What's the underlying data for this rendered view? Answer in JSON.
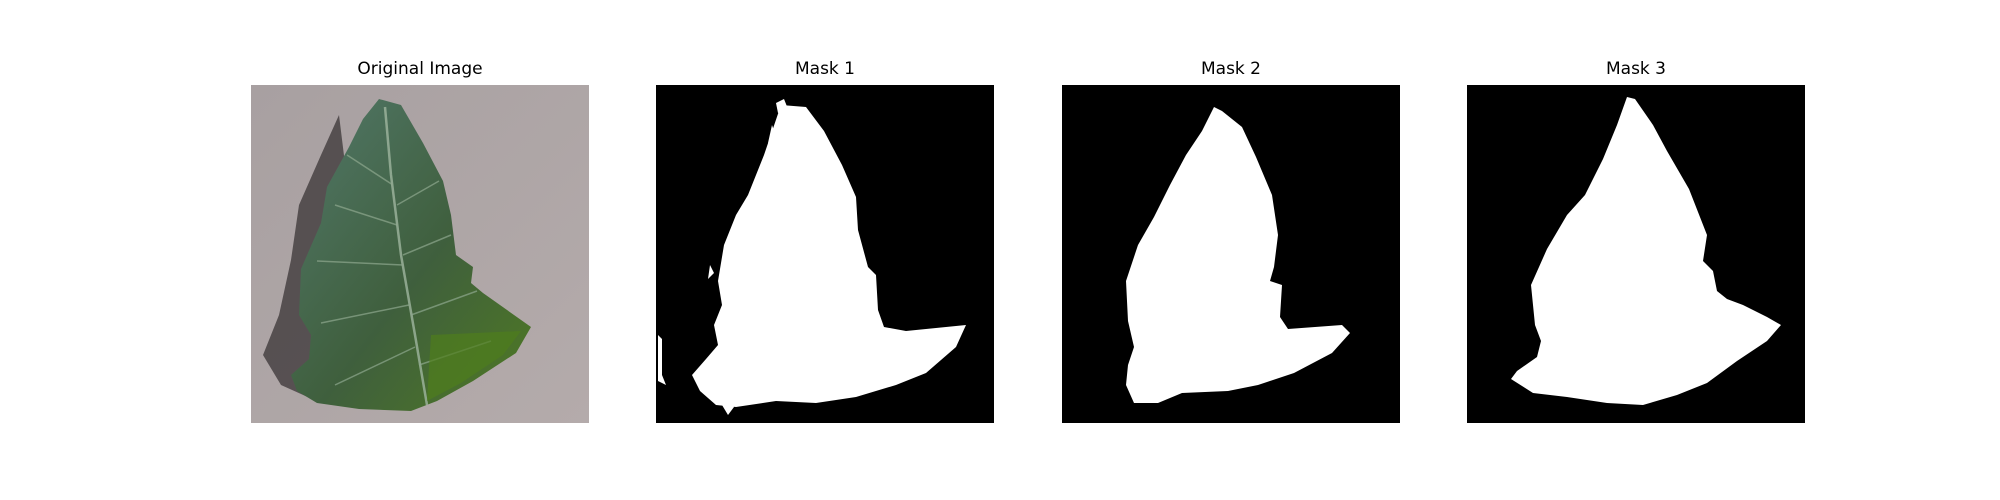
{
  "figure": {
    "panels": [
      {
        "title": "Original Image",
        "content": "leaf-photo"
      },
      {
        "title": "Mask 1",
        "content": "binary-mask"
      },
      {
        "title": "Mask 2",
        "content": "binary-mask"
      },
      {
        "title": "Mask 3",
        "content": "binary-mask"
      }
    ]
  },
  "colors": {
    "background": "#ffffff",
    "mask_background": "#000000",
    "mask_foreground": "#ffffff",
    "surface": "#a59b9b",
    "leaf": "#4a6e4a"
  }
}
